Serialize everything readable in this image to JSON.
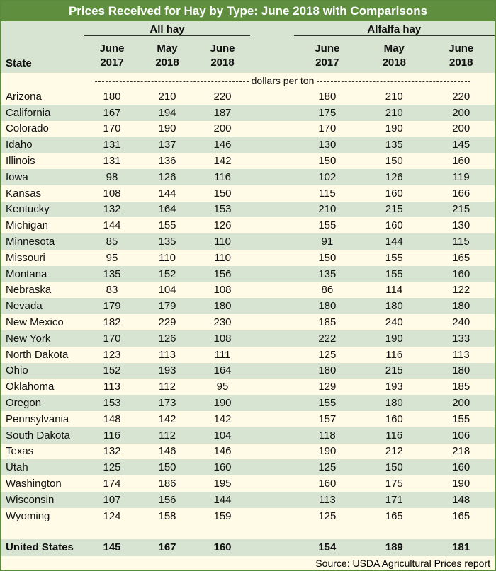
{
  "chart_data": {
    "type": "table",
    "title": "Prices Received for Hay by Type: June 2018 with Comparisons",
    "state_header": "State",
    "groups": [
      "All hay",
      "Alfalfa hay"
    ],
    "columns": [
      {
        "month": "June",
        "year": "2017"
      },
      {
        "month": "May",
        "year": "2018"
      },
      {
        "month": "June",
        "year": "2018"
      }
    ],
    "units": "dollars per ton",
    "rows": [
      {
        "state": "Arizona",
        "all": [
          180,
          210,
          220
        ],
        "alfalfa": [
          180,
          210,
          220
        ]
      },
      {
        "state": "California",
        "all": [
          167,
          194,
          187
        ],
        "alfalfa": [
          175,
          210,
          200
        ]
      },
      {
        "state": "Colorado",
        "all": [
          170,
          190,
          200
        ],
        "alfalfa": [
          170,
          190,
          200
        ]
      },
      {
        "state": "Idaho",
        "all": [
          131,
          137,
          146
        ],
        "alfalfa": [
          130,
          135,
          145
        ]
      },
      {
        "state": "Illinois",
        "all": [
          131,
          136,
          142
        ],
        "alfalfa": [
          150,
          150,
          160
        ]
      },
      {
        "state": "Iowa",
        "all": [
          98,
          126,
          116
        ],
        "alfalfa": [
          102,
          126,
          119
        ]
      },
      {
        "state": "Kansas",
        "all": [
          108,
          144,
          150
        ],
        "alfalfa": [
          115,
          160,
          166
        ]
      },
      {
        "state": "Kentucky",
        "all": [
          132,
          164,
          153
        ],
        "alfalfa": [
          210,
          215,
          215
        ]
      },
      {
        "state": "Michigan",
        "all": [
          144,
          155,
          126
        ],
        "alfalfa": [
          155,
          160,
          130
        ]
      },
      {
        "state": "Minnesota",
        "all": [
          85,
          135,
          110
        ],
        "alfalfa": [
          91,
          144,
          115
        ]
      },
      {
        "state": "Missouri",
        "all": [
          95,
          110,
          110
        ],
        "alfalfa": [
          150,
          155,
          165
        ]
      },
      {
        "state": "Montana",
        "all": [
          135,
          152,
          156
        ],
        "alfalfa": [
          135,
          155,
          160
        ]
      },
      {
        "state": "Nebraska",
        "all": [
          83,
          104,
          108
        ],
        "alfalfa": [
          86,
          114,
          122
        ]
      },
      {
        "state": "Nevada",
        "all": [
          179,
          179,
          180
        ],
        "alfalfa": [
          180,
          180,
          180
        ]
      },
      {
        "state": "New Mexico",
        "all": [
          182,
          229,
          230
        ],
        "alfalfa": [
          185,
          240,
          240
        ]
      },
      {
        "state": "New York",
        "all": [
          170,
          126,
          108
        ],
        "alfalfa": [
          222,
          190,
          133
        ]
      },
      {
        "state": "North Dakota",
        "all": [
          123,
          113,
          111
        ],
        "alfalfa": [
          125,
          116,
          113
        ]
      },
      {
        "state": "Ohio",
        "all": [
          152,
          193,
          164
        ],
        "alfalfa": [
          180,
          215,
          180
        ]
      },
      {
        "state": "Oklahoma",
        "all": [
          113,
          112,
          95
        ],
        "alfalfa": [
          129,
          193,
          185
        ]
      },
      {
        "state": "Oregon",
        "all": [
          153,
          173,
          190
        ],
        "alfalfa": [
          155,
          180,
          200
        ]
      },
      {
        "state": "Pennsylvania",
        "all": [
          148,
          142,
          142
        ],
        "alfalfa": [
          157,
          160,
          155
        ]
      },
      {
        "state": "South Dakota",
        "all": [
          116,
          112,
          104
        ],
        "alfalfa": [
          118,
          116,
          106
        ]
      },
      {
        "state": "Texas",
        "all": [
          132,
          146,
          146
        ],
        "alfalfa": [
          190,
          212,
          218
        ]
      },
      {
        "state": "Utah",
        "all": [
          125,
          150,
          160
        ],
        "alfalfa": [
          125,
          150,
          160
        ]
      },
      {
        "state": "Washington",
        "all": [
          174,
          186,
          195
        ],
        "alfalfa": [
          160,
          175,
          190
        ]
      },
      {
        "state": "Wisconsin",
        "all": [
          107,
          156,
          144
        ],
        "alfalfa": [
          113,
          171,
          148
        ]
      },
      {
        "state": "Wyoming",
        "all": [
          124,
          158,
          159
        ],
        "alfalfa": [
          125,
          165,
          165
        ]
      }
    ],
    "total": {
      "state": "United States",
      "all": [
        145,
        167,
        160
      ],
      "alfalfa": [
        154,
        189,
        181
      ]
    },
    "source": "Source: USDA Agricultural Prices report"
  },
  "colors": {
    "title_bg": "#5e8e3e",
    "band": "#d8e4d2",
    "cream": "#fffbe6"
  }
}
